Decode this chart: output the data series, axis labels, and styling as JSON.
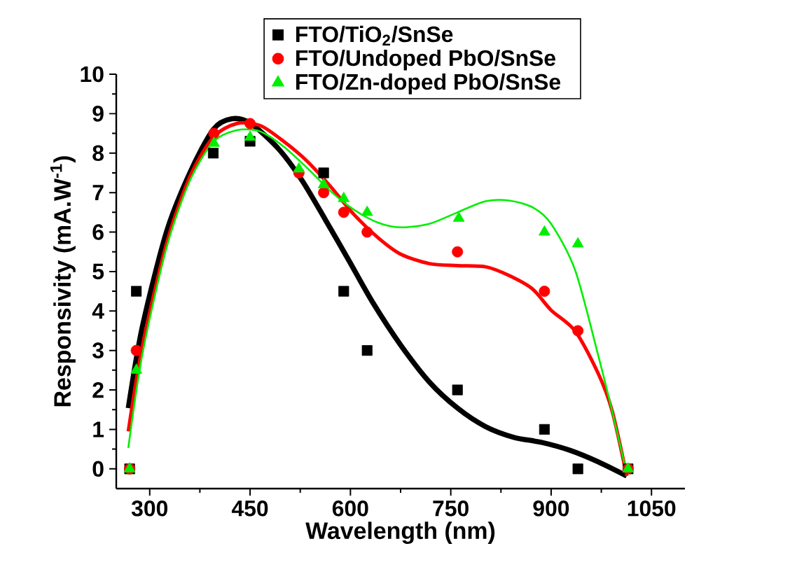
{
  "chart_data": {
    "type": "scatter",
    "xlabel": "Wavelength (nm)",
    "ylabel": "Responsivity (mA.W$^{-1}$)",
    "xlim": [
      250,
      1100
    ],
    "ylim": [
      -0.5,
      10
    ],
    "xticks": [
      300,
      450,
      600,
      750,
      900,
      1050
    ],
    "yticks": [
      0,
      1,
      2,
      3,
      4,
      5,
      6,
      7,
      8,
      9,
      10
    ],
    "legend": "top right",
    "grid": false,
    "series": [
      {
        "name": "FTO/TiO$_{2}$/SnSe",
        "marker": "square",
        "color": "#000000",
        "x": [
          270,
          280,
          395,
          450,
          560,
          590,
          625,
          760,
          890,
          940,
          1015
        ],
        "values": [
          0,
          4.5,
          8,
          8.3,
          7.5,
          4.5,
          3,
          2,
          1,
          0,
          0
        ]
      },
      {
        "name": "FTO/Undoped PbO/SnSe",
        "marker": "circle",
        "color": "#ff0000",
        "x": [
          270,
          280,
          396,
          450,
          523,
          560,
          590,
          625,
          760,
          890,
          940,
          1015
        ],
        "values": [
          0,
          3,
          8.5,
          8.75,
          7.5,
          7,
          6.5,
          6,
          5.5,
          4.5,
          3.5,
          0
        ]
      },
      {
        "name": "FTO/Zn-doped PbO/SnSe",
        "marker": "triangle",
        "color": "#00ee00",
        "x": [
          270,
          280,
          396,
          450,
          523,
          560,
          590,
          625,
          762,
          890,
          940,
          1015
        ],
        "values": [
          0,
          2.5,
          8.25,
          8.4,
          7.6,
          7.2,
          6.85,
          6.5,
          6.35,
          6,
          5.7,
          0
        ]
      },
      {
        "type": "line",
        "marker": "none",
        "line_style": "solid",
        "color": "#000000",
        "x": [
          268,
          289,
          325,
          360,
          395,
          423,
          451,
          493,
          528,
          563,
          598,
          634,
          675,
          718,
          760,
          802,
          844,
          886,
          928,
          970,
          1013
        ],
        "values": [
          1.54,
          3.6,
          6.0,
          7.5,
          8.6,
          8.87,
          8.75,
          8.1,
          7.3,
          6.3,
          5.27,
          4.2,
          3.14,
          2.2,
          1.54,
          1.07,
          0.8,
          0.67,
          0.47,
          0.18,
          -0.18
        ]
      },
      {
        "type": "line",
        "marker": "none",
        "line_style": "solid",
        "color": "#ff0000",
        "x": [
          268,
          289,
          325,
          360,
          395,
          430,
          465,
          500,
          535,
          570,
          605,
          641,
          675,
          718,
          760,
          802,
          837,
          872,
          900,
          936,
          970,
          991,
          1013
        ],
        "values": [
          0.95,
          3.1,
          5.7,
          7.4,
          8.4,
          8.75,
          8.7,
          8.3,
          7.8,
          7.16,
          6.45,
          5.86,
          5.44,
          5.2,
          5.15,
          5.12,
          4.9,
          4.56,
          4.02,
          3.49,
          2.43,
          1.48,
          -0.18
        ]
      },
      {
        "type": "line",
        "marker": "none",
        "line_style": "solid",
        "color": "#00ee00",
        "x": [
          268,
          289,
          325,
          360,
          395,
          430,
          465,
          500,
          535,
          570,
          605,
          641,
          675,
          718,
          760,
          802,
          837,
          872,
          900,
          936,
          970,
          991,
          1013
        ],
        "values": [
          0.53,
          2.9,
          5.6,
          7.3,
          8.28,
          8.58,
          8.55,
          8.17,
          7.63,
          7.04,
          6.57,
          6.24,
          6.12,
          6.21,
          6.5,
          6.78,
          6.8,
          6.63,
          6.21,
          5.03,
          2.9,
          1.48,
          -0.12
        ]
      }
    ]
  }
}
